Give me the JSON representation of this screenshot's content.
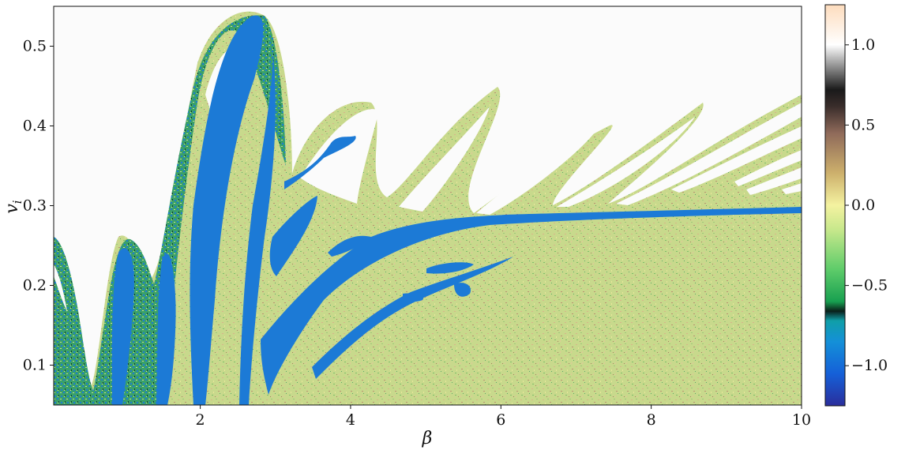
{
  "chart_data": {
    "type": "heatmap",
    "xlabel": "β",
    "ylabel": "v_i",
    "xlim": [
      0.05,
      10
    ],
    "ylim": [
      0.05,
      0.55
    ],
    "x_ticks": [
      {
        "value": 2,
        "label": "2"
      },
      {
        "value": 4,
        "label": "4"
      },
      {
        "value": 6,
        "label": "6"
      },
      {
        "value": 8,
        "label": "8"
      },
      {
        "value": 10,
        "label": "10"
      }
    ],
    "y_ticks": [
      {
        "value": 0.1,
        "label": "0.1"
      },
      {
        "value": 0.2,
        "label": "0.2"
      },
      {
        "value": 0.3,
        "label": "0.3"
      },
      {
        "value": 0.4,
        "label": "0.4"
      },
      {
        "value": 0.5,
        "label": "0.5"
      }
    ],
    "colorbar": {
      "range": [
        -1.25,
        1.25
      ],
      "ticks": [
        {
          "value": -1.0,
          "label": "−1.0"
        },
        {
          "value": -0.5,
          "label": "−0.5"
        },
        {
          "value": 0.0,
          "label": "0.0"
        },
        {
          "value": 0.5,
          "label": "0.5"
        },
        {
          "value": 1.0,
          "label": "1.0"
        }
      ],
      "colormap_stops": [
        {
          "value": -1.25,
          "color": "#2a2e9c"
        },
        {
          "value": -1.05,
          "color": "#1560d8"
        },
        {
          "value": -0.85,
          "color": "#1490d8"
        },
        {
          "value": -0.72,
          "color": "#109fa8"
        },
        {
          "value": -0.66,
          "color": "#0a1f1a"
        },
        {
          "value": -0.6,
          "color": "#18a050"
        },
        {
          "value": -0.4,
          "color": "#5ecc6a"
        },
        {
          "value": -0.15,
          "color": "#c8e88c"
        },
        {
          "value": 0.0,
          "color": "#f4f2a0"
        },
        {
          "value": 0.2,
          "color": "#cdb06c"
        },
        {
          "value": 0.45,
          "color": "#8f6a5a"
        },
        {
          "value": 0.62,
          "color": "#382c2a"
        },
        {
          "value": 0.72,
          "color": "#1a1a1a"
        },
        {
          "value": 0.88,
          "color": "#9c9c9c"
        },
        {
          "value": 1.0,
          "color": "#ffffff"
        },
        {
          "value": 1.25,
          "color": "#fddcbd"
        }
      ]
    },
    "colors": {
      "escape_region": "#fbfbfb",
      "chaotic_green": "#c8d98c",
      "regular_blue": "#1c7ad6",
      "speckle_green": "#2f9e56",
      "speckle_brown": "#b98a6a",
      "speckle_yellow": "#eef07a"
    }
  }
}
